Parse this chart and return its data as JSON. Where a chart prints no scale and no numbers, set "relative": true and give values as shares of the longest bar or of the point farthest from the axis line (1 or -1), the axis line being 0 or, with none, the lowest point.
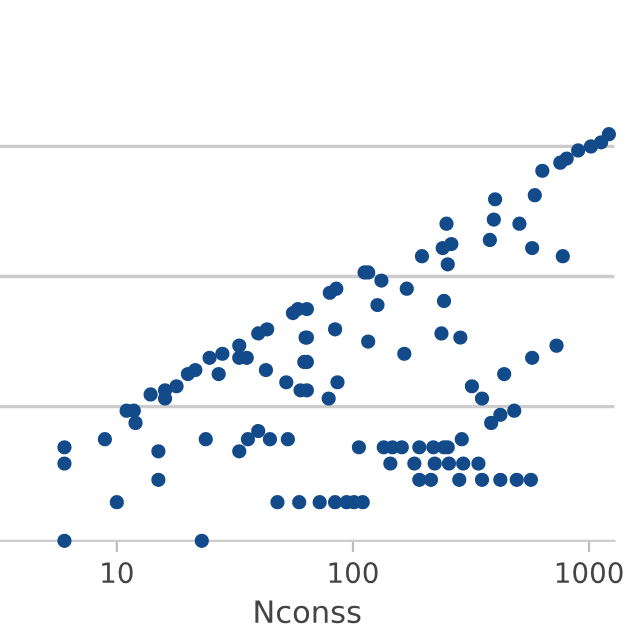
{
  "chart_data": {
    "type": "scatter",
    "xlabel": "Nconss",
    "log": "x",
    "xlim": [
      3.2,
      1280
    ],
    "xticks": [
      10,
      100,
      1000
    ],
    "relative": true,
    "ref_lines": [
      {
        "axis": "y",
        "value": 0.33,
        "color": "#cccccc"
      },
      {
        "axis": "y",
        "value": 0.65,
        "color": "#cccccc"
      },
      {
        "axis": "y",
        "value": 0.97,
        "color": "#cccccc"
      }
    ],
    "tick_labels": "x",
    "marker": "circle",
    "series": [
      {
        "color": "#124a8a",
        "x": [
          6,
          6,
          6,
          8.9,
          10,
          11,
          11.8,
          12,
          13.9,
          15,
          15,
          16,
          16,
          17.9,
          20,
          21.5,
          22.9,
          23.8,
          24.7,
          27,
          28,
          33,
          33,
          33,
          35.5,
          35.9,
          39.7,
          39.7,
          43.3,
          42.8,
          44.5,
          47.9,
          52.2,
          53,
          55.7,
          58.5,
          60,
          59.2,
          63,
          62.2,
          63.8,
          63.8,
          63.8,
          63.8,
          72.3,
          84,
          94,
          101,
          110,
          78.9,
          79.8,
          85,
          84,
          86,
          106,
          112,
          116,
          116,
          127,
          132,
          135,
          147,
          161,
          191,
          219,
          243,
          252,
          144,
          182,
          222,
          255,
          293,
          340,
          191,
          214,
          282,
          352,
          421,
          494,
          567,
          165,
          169,
          196,
          240,
          249,
          261,
          252,
          243,
          237,
          285,
          289,
          319,
          352,
          380,
          395,
          400,
          385,
          421,
          482,
          437,
          507,
          574,
          589,
          574,
          634,
          728,
          774,
          755,
          804,
          899,
          1019,
          1125,
          1213
        ],
        "values": [
          0.23,
          0.19,
          0,
          0.25,
          0.095,
          0.32,
          0.32,
          0.29,
          0.36,
          0.22,
          0.15,
          0.37,
          0.35,
          0.38,
          0.41,
          0.42,
          0,
          0.25,
          0.45,
          0.41,
          0.46,
          0.48,
          0.22,
          0.45,
          0.45,
          0.25,
          0.27,
          0.51,
          0.52,
          0.42,
          0.25,
          0.095,
          0.39,
          0.25,
          0.56,
          0.57,
          0.37,
          0.095,
          0.5,
          0.44,
          0.57,
          0.5,
          0.44,
          0.37,
          0.095,
          0.095,
          0.095,
          0.095,
          0.095,
          0.35,
          0.61,
          0.62,
          0.52,
          0.39,
          0.23,
          0.66,
          0.66,
          0.49,
          0.58,
          0.64,
          0.23,
          0.23,
          0.23,
          0.23,
          0.23,
          0.23,
          0.23,
          0.19,
          0.19,
          0.19,
          0.19,
          0.19,
          0.19,
          0.15,
          0.15,
          0.15,
          0.15,
          0.15,
          0.15,
          0.15,
          0.46,
          0.62,
          0.7,
          0.72,
          0.78,
          0.73,
          0.68,
          0.59,
          0.51,
          0.5,
          0.25,
          0.38,
          0.35,
          0.74,
          0.79,
          0.84,
          0.29,
          0.31,
          0.32,
          0.41,
          0.78,
          0.72,
          0.85,
          0.45,
          0.91,
          0.48,
          0.7,
          0.93,
          0.94,
          0.96,
          0.97,
          0.98,
          1.0
        ]
      }
    ]
  }
}
